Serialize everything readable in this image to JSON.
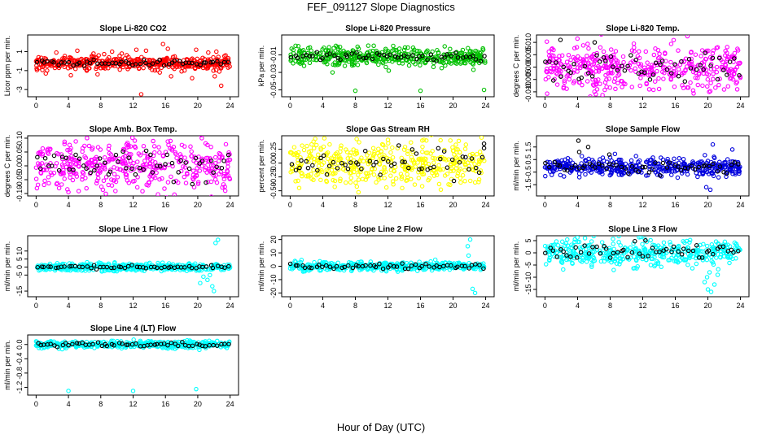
{
  "figure": {
    "title": "FEF_091127  Slope Diagnostics",
    "xlabel": "Hour of Day (UTC)"
  },
  "chart_data": [
    {
      "type": "scatter",
      "title": "Slope Li-820 CO2",
      "ylabel": "Licor ppm per min.",
      "xlim": [
        0,
        24
      ],
      "ylim": [
        -3.5,
        2.5
      ],
      "xticks": [
        "0",
        "4",
        "8",
        "12",
        "16",
        "20",
        "24"
      ],
      "yticks": [
        "-3",
        "-1",
        "1"
      ],
      "yticks_values": [
        -3,
        -1,
        1
      ],
      "series": [
        {
          "color": "#ff0000",
          "center": -0.2,
          "spread": 0.35,
          "points": [
            [
              1.2,
              -1.3
            ],
            [
              2.5,
              0.9
            ],
            [
              4.3,
              -1.5
            ],
            [
              5.1,
              1.1
            ],
            [
              7.1,
              0.8
            ],
            [
              7.6,
              -1.4
            ],
            [
              9.4,
              1.0
            ],
            [
              10.6,
              0.8
            ],
            [
              12.4,
              1.2
            ],
            [
              13.0,
              -3.5
            ],
            [
              13.6,
              1.1
            ],
            [
              15.3,
              -1.2
            ],
            [
              15.7,
              1.8
            ],
            [
              16.3,
              1.3
            ],
            [
              16.7,
              -1.6
            ],
            [
              19.3,
              -1.8
            ],
            [
              19.8,
              1.2
            ],
            [
              21.3,
              0.9
            ],
            [
              22.1,
              -1.6
            ],
            [
              22.9,
              -2.6
            ],
            [
              22.3,
              1.0
            ]
          ]
        },
        {
          "color": "#000000",
          "center": -0.2,
          "spread": 0.15,
          "points": []
        }
      ]
    },
    {
      "type": "scatter",
      "title": "Slope Li-820 Pressure",
      "ylabel": "kPa per min.",
      "xlim": [
        0,
        24
      ],
      "ylim": [
        -0.055,
        0.01
      ],
      "xticks": [
        "0",
        "4",
        "8",
        "12",
        "16",
        "20",
        "24"
      ],
      "yticks": [
        "-0.05",
        "-0.03",
        "-0.01"
      ],
      "yticks_values": [
        -0.05,
        -0.03,
        -0.01
      ],
      "series": [
        {
          "color": "#00c000",
          "center": -0.012,
          "spread": 0.005,
          "points": [
            [
              8.0,
              -0.051
            ],
            [
              16.0,
              -0.051
            ],
            [
              23.8,
              -0.05
            ],
            [
              1.0,
              0.0
            ],
            [
              22.5,
              -0.027
            ],
            [
              5.2,
              -0.03
            ],
            [
              12.1,
              -0.028
            ],
            [
              18.6,
              -0.025
            ]
          ]
        },
        {
          "color": "#000000",
          "center": -0.012,
          "spread": 0.003,
          "points": []
        }
      ]
    },
    {
      "type": "scatter",
      "title": "Slope Li-820 Temp.",
      "ylabel": "degrees C per min.",
      "xlim": [
        0,
        24
      ],
      "ylim": [
        -0.011,
        0.012
      ],
      "xticks": [
        "0",
        "4",
        "8",
        "12",
        "16",
        "20",
        "24"
      ],
      "yticks": [
        "-0.010",
        "-0.005",
        "0.000",
        "0.005",
        "0.010"
      ],
      "yticks_values": [
        -0.01,
        -0.005,
        0.0,
        0.005,
        0.01
      ],
      "series": [
        {
          "color": "#ff00ff",
          "center": 0.0,
          "spread": 0.0045,
          "points": [
            [
              6.4,
              -0.009
            ],
            [
              12.8,
              -0.009
            ],
            [
              2.3,
              -0.008
            ],
            [
              23.6,
              -0.009
            ],
            [
              21.2,
              0.008
            ]
          ]
        },
        {
          "color": "#000000",
          "center": 0.0,
          "spread": 0.003,
          "points": [
            [
              1.9,
              0.011
            ],
            [
              6.1,
              0.01
            ]
          ]
        }
      ]
    },
    {
      "type": "scatter",
      "title": "Slope Amb. Box Temp.",
      "ylabel": "degrees C per min.",
      "xlim": [
        0,
        24
      ],
      "ylim": [
        -0.1,
        0.1
      ],
      "xticks": [
        "0",
        "4",
        "8",
        "12",
        "16",
        "20",
        "24"
      ],
      "yticks": [
        "-0.10",
        "-0.05",
        "0.00",
        "0.05",
        "0.10"
      ],
      "yticks_values": [
        -0.1,
        -0.05,
        0.0,
        0.05,
        0.1
      ],
      "series": [
        {
          "color": "#ff00ff",
          "center": 0.0,
          "spread": 0.045,
          "points": [
            [
              4.0,
              -0.095
            ],
            [
              20.5,
              0.1
            ],
            [
              23.4,
              -0.09
            ]
          ]
        },
        {
          "color": "#000000",
          "center": 0.0,
          "spread": 0.03,
          "points": []
        }
      ]
    },
    {
      "type": "scatter",
      "title": "Slope Gas Stream RH",
      "ylabel": "percent per min.",
      "xlim": [
        0,
        24
      ],
      "ylim": [
        -0.55,
        0.45
      ],
      "xticks": [
        "0",
        "4",
        "8",
        "12",
        "16",
        "20",
        "24"
      ],
      "yticks": [
        "-0.50",
        "-0.25",
        "0.00",
        "0.25"
      ],
      "yticks_values": [
        -0.5,
        -0.25,
        0.0,
        0.25
      ],
      "series": [
        {
          "color": "#ffff00",
          "center": 0.0,
          "spread": 0.2,
          "points": [
            [
              12.0,
              0.42
            ],
            [
              1.1,
              -0.45
            ],
            [
              18.5,
              -0.48
            ],
            [
              20.7,
              0.4
            ]
          ]
        },
        {
          "color": "#000000",
          "center": 0.0,
          "spread": 0.14,
          "points": [
            [
              23.8,
              0.27
            ],
            [
              23.8,
              0.35
            ]
          ]
        }
      ]
    },
    {
      "type": "scatter",
      "title": "Slope Sample Flow",
      "ylabel": "ml/min per min.",
      "xlim": [
        0,
        24
      ],
      "ylim": [
        -2.2,
        2.2
      ],
      "xticks": [
        "0",
        "4",
        "8",
        "12",
        "16",
        "20",
        "24"
      ],
      "yticks": [
        "-1.5",
        "-0.5",
        "0.5",
        "1.5"
      ],
      "yticks_values": [
        -1.5,
        -0.5,
        0.5,
        1.5
      ],
      "series": [
        {
          "color": "#0000dd",
          "center": -0.1,
          "spread": 0.35,
          "points": [
            [
              19.8,
              -1.7
            ],
            [
              20.3,
              -1.9
            ],
            [
              23.0,
              1.3
            ],
            [
              20.6,
              1.7
            ]
          ]
        },
        {
          "color": "#000000",
          "center": -0.1,
          "spread": 0.25,
          "points": [
            [
              4.1,
              2.0
            ],
            [
              4.2,
              1.1
            ],
            [
              5.3,
              1.5
            ],
            [
              7.9,
              0.9
            ]
          ]
        }
      ]
    },
    {
      "type": "scatter",
      "title": "Slope Line 1 Flow",
      "ylabel": "ml/min per min.",
      "xlim": [
        0,
        24
      ],
      "ylim": [
        -17,
        18
      ],
      "xticks": [
        "0",
        "4",
        "8",
        "12",
        "16",
        "20",
        "24"
      ],
      "yticks": [
        "-15",
        "-5",
        "0",
        "5",
        "10"
      ],
      "yticks_values": [
        -15,
        -5,
        0,
        5,
        10
      ],
      "series": [
        {
          "color": "#00ffff",
          "center": 0.0,
          "spread": 1.2,
          "points": [
            [
              20.3,
              -10
            ],
            [
              21.2,
              -8
            ],
            [
              21.5,
              -5
            ],
            [
              22.2,
              15
            ],
            [
              22.5,
              17
            ],
            [
              22.0,
              -15
            ],
            [
              20.7,
              -6
            ],
            [
              21.8,
              -12
            ]
          ]
        },
        {
          "color": "#000000",
          "center": 0.0,
          "spread": 0.5,
          "points": []
        }
      ]
    },
    {
      "type": "scatter",
      "title": "Slope Line 2 Flow",
      "ylabel": "ml/min per min.",
      "xlim": [
        0,
        24
      ],
      "ylim": [
        -21,
        21
      ],
      "xticks": [
        "0",
        "4",
        "8",
        "12",
        "16",
        "20",
        "24"
      ],
      "yticks": [
        "-20",
        "-10",
        "0",
        "10",
        "20"
      ],
      "yticks_values": [
        -20,
        -10,
        0,
        10,
        20
      ],
      "series": [
        {
          "color": "#00ffff",
          "center": 0.0,
          "spread": 1.6,
          "points": [
            [
              21.8,
              15
            ],
            [
              22.1,
              20
            ],
            [
              22.4,
              -17
            ],
            [
              22.7,
              -20
            ],
            [
              21.9,
              8
            ]
          ]
        },
        {
          "color": "#000000",
          "center": 0.0,
          "spread": 1.0,
          "points": []
        }
      ]
    },
    {
      "type": "scatter",
      "title": "Slope Line 3 Flow",
      "ylabel": "ml/min per min.",
      "xlim": [
        0,
        24
      ],
      "ylim": [
        -17,
        6
      ],
      "xticks": [
        "0",
        "4",
        "8",
        "12",
        "16",
        "20",
        "24"
      ],
      "yticks": [
        "-15",
        "-10",
        "-5",
        "0",
        "5"
      ],
      "yticks_values": [
        -15,
        -10,
        -5,
        0,
        5
      ],
      "series": [
        {
          "color": "#00ffff",
          "center": 0.0,
          "spread": 2.8,
          "points": [
            [
              19.6,
              -12
            ],
            [
              20.0,
              -15
            ],
            [
              20.4,
              -16
            ],
            [
              20.8,
              -13
            ],
            [
              21.2,
              -9
            ],
            [
              20.2,
              -8
            ],
            [
              19.9,
              -10
            ]
          ]
        },
        {
          "color": "#000000",
          "center": 0.8,
          "spread": 1.5,
          "points": []
        }
      ]
    },
    {
      "type": "scatter",
      "title": "Slope Line 4 (LT) Flow",
      "ylabel": "ml/min per min.",
      "xlim": [
        0,
        24
      ],
      "ylim": [
        -1.35,
        0.2
      ],
      "xticks": [
        "0",
        "4",
        "8",
        "12",
        "16",
        "20",
        "24"
      ],
      "yticks": [
        "-1.2",
        "-0.8",
        "-0.4",
        "0.0"
      ],
      "yticks_values": [
        -1.2,
        -0.8,
        -0.4,
        0.0
      ],
      "series": [
        {
          "color": "#00ffff",
          "center": 0.0,
          "spread": 0.05,
          "points": [
            [
              4.0,
              -1.3
            ],
            [
              12.0,
              -1.3
            ],
            [
              19.8,
              -1.25
            ],
            [
              20.2,
              -0.15
            ],
            [
              21.0,
              -0.1
            ],
            [
              22.4,
              0.1
            ]
          ]
        },
        {
          "color": "#000000",
          "center": 0.0,
          "spread": 0.03,
          "points": []
        }
      ]
    }
  ]
}
